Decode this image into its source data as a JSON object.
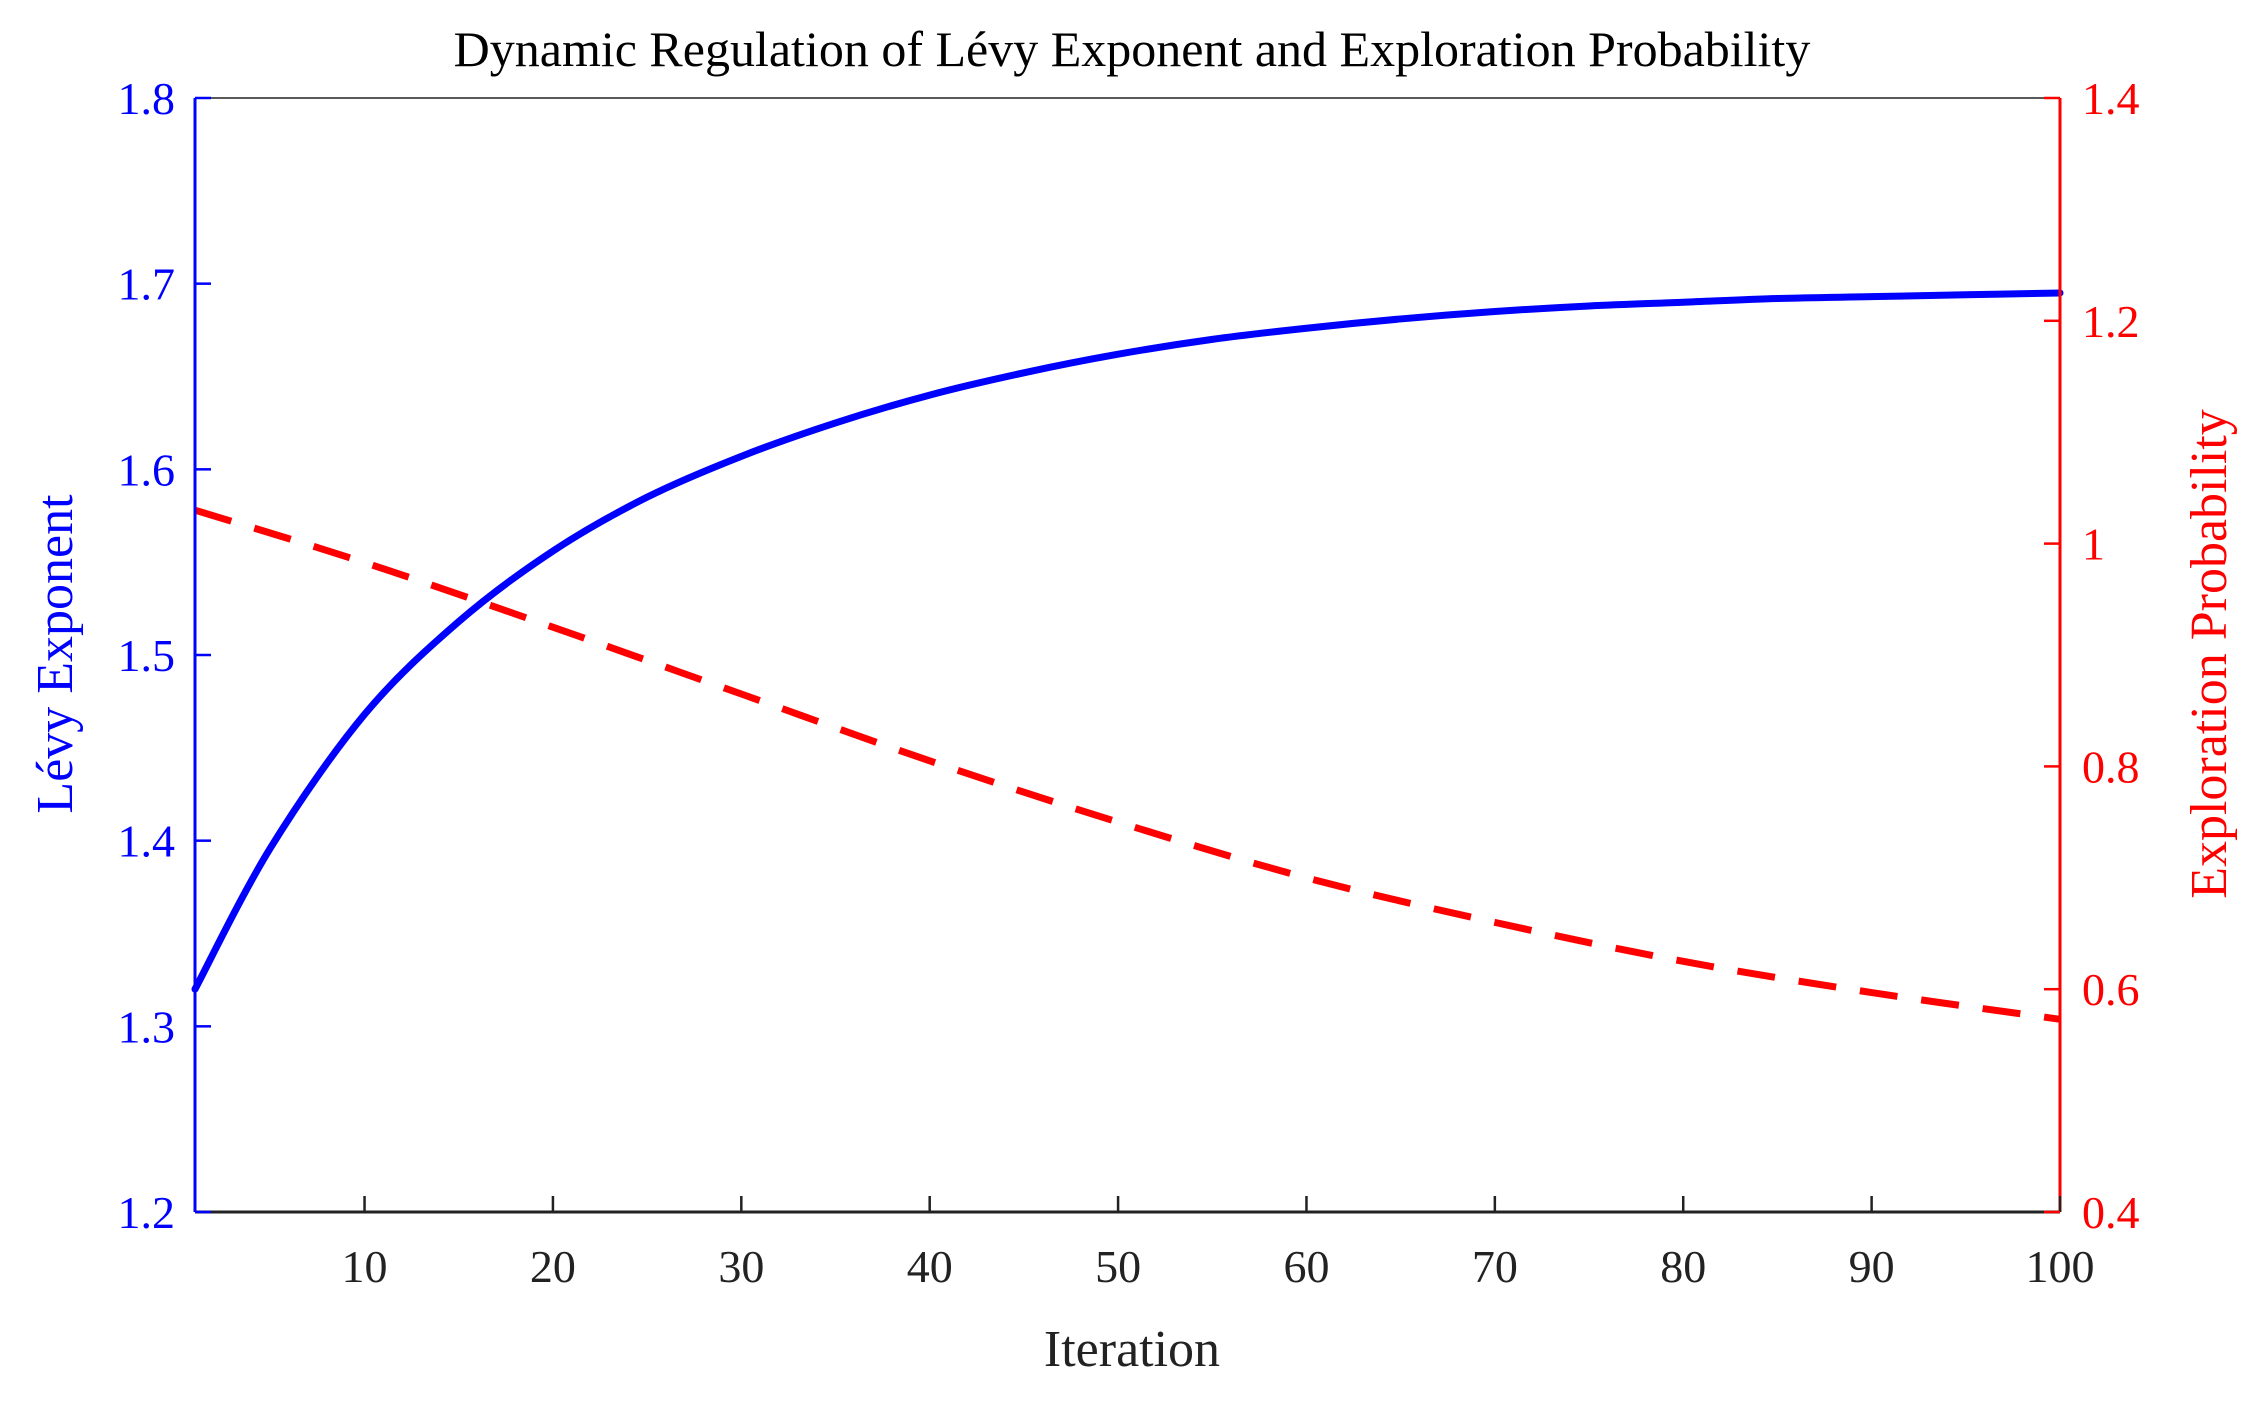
{
  "chart_data": {
    "type": "line",
    "title": "Dynamic Regulation of Lévy Exponent and Exploration Probability",
    "xlabel": "Iteration",
    "ylabel_left": "Lévy Exponent",
    "ylabel_right": "Exploration Probability",
    "xlim": [
      1,
      100
    ],
    "ylim_left": [
      1.2,
      1.8
    ],
    "ylim_right": [
      0.4,
      1.4
    ],
    "xticks": [
      10,
      20,
      30,
      40,
      50,
      60,
      70,
      80,
      90,
      100
    ],
    "xtick_labels": [
      "10",
      "20",
      "30",
      "40",
      "50",
      "60",
      "70",
      "80",
      "90",
      "100"
    ],
    "yticks_left": [
      1.2,
      1.3,
      1.4,
      1.5,
      1.6,
      1.7,
      1.8
    ],
    "ytick_labels_left": [
      "1.2",
      "1.3",
      "1.4",
      "1.5",
      "1.6",
      "1.7",
      "1.8"
    ],
    "yticks_right": [
      0.4,
      0.6,
      0.8,
      1.0,
      1.2,
      1.4
    ],
    "ytick_labels_right": [
      "0.4",
      "0.6",
      "0.8",
      "1",
      "1.2",
      "1.4"
    ],
    "grid": false,
    "series": [
      {
        "name": "Lévy Exponent",
        "axis": "left",
        "color": "#0000ff",
        "style": "solid",
        "x": [
          1,
          5,
          10,
          15,
          20,
          25,
          30,
          35,
          40,
          45,
          50,
          55,
          60,
          65,
          70,
          75,
          80,
          85,
          90,
          95,
          100
        ],
        "y": [
          1.32,
          1.396,
          1.468,
          1.518,
          1.556,
          1.585,
          1.607,
          1.625,
          1.64,
          1.652,
          1.662,
          1.67,
          1.676,
          1.681,
          1.685,
          1.688,
          1.69,
          1.692,
          1.693,
          1.694,
          1.695
        ]
      },
      {
        "name": "Exploration Probability",
        "axis": "right",
        "color": "#ff0000",
        "style": "dashed",
        "x": [
          1,
          10,
          20,
          30,
          40,
          50,
          60,
          70,
          80,
          90,
          100
        ],
        "y": [
          1.03,
          0.983,
          0.925,
          0.865,
          0.805,
          0.75,
          0.7,
          0.66,
          0.625,
          0.597,
          0.573
        ]
      }
    ]
  }
}
